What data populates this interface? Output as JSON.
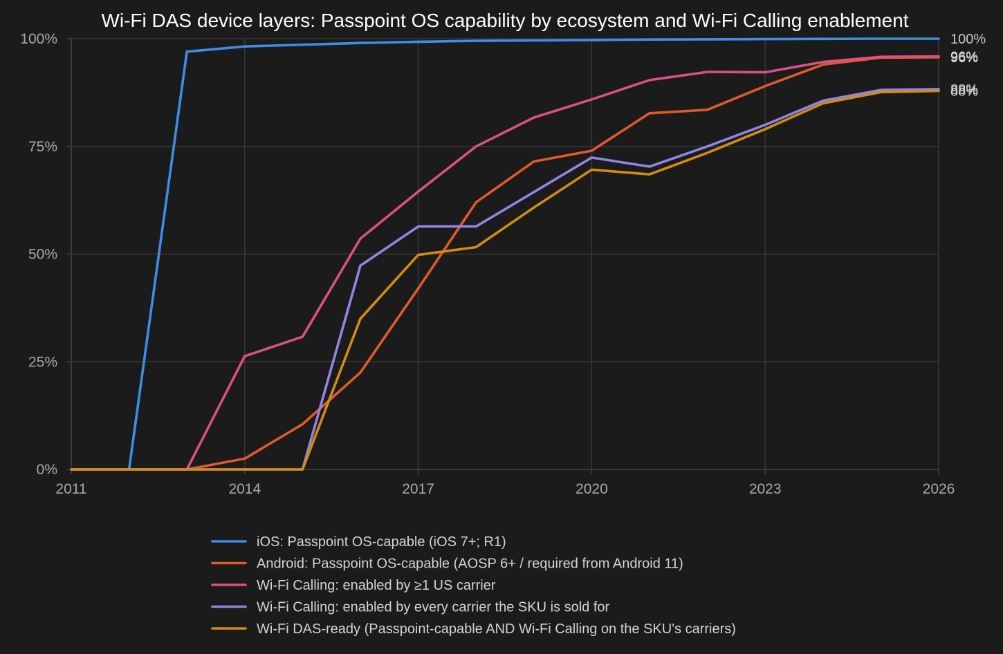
{
  "chart_data": {
    "type": "line",
    "title": "Wi-Fi DAS device layers: Passpoint OS capability by ecosystem and Wi-Fi Calling enablement",
    "xlabel": "",
    "ylabel": "",
    "xlim": [
      2011,
      2026
    ],
    "ylim": [
      0,
      100
    ],
    "x_ticks": [
      "2011",
      "2014",
      "2017",
      "2020",
      "2023",
      "2026"
    ],
    "y_ticks": [
      "0%",
      "25%",
      "50%",
      "75%",
      "100%"
    ],
    "grid": true,
    "legend_position": "bottom-center",
    "x": [
      2011,
      2012,
      2013,
      2014,
      2015,
      2016,
      2017,
      2018,
      2019,
      2020,
      2021,
      2022,
      2023,
      2024,
      2025,
      2026
    ],
    "series": [
      {
        "name": "iOS: Passpoint OS-capable (iOS 7+; R1)",
        "color": "#3d8ee6",
        "values": [
          0,
          0,
          97,
          98.2,
          98.6,
          99,
          99.3,
          99.5,
          99.6,
          99.7,
          99.8,
          99.85,
          99.9,
          99.95,
          100,
          100
        ],
        "end_label": "100%"
      },
      {
        "name": "Android: Passpoint OS-capable (AOSP 6+ / required from Android 11)",
        "color": "#e05a2b",
        "values": [
          0,
          0,
          0,
          2.5,
          10.5,
          22.5,
          42,
          62,
          71.5,
          74,
          82.7,
          83.5,
          89,
          94,
          95.6,
          95.7
        ],
        "end_label": "96%"
      },
      {
        "name": "Wi-Fi Calling: enabled by ≥1 US carrier",
        "color": "#db5084",
        "values": [
          0,
          0,
          0,
          26.3,
          30.8,
          53.6,
          64.5,
          75,
          81.7,
          85.9,
          90.4,
          92.3,
          92.2,
          94.6,
          95.8,
          95.9
        ],
        "end_label": "96%"
      },
      {
        "name": "Wi-Fi Calling: enabled by every carrier the SKU is sold for",
        "color": "#9184e6",
        "values": [
          0,
          0,
          0,
          0,
          0,
          47.3,
          56.4,
          56.4,
          64.4,
          72.4,
          70.3,
          75,
          80,
          85.6,
          88.1,
          88.3
        ],
        "end_label": "88%"
      },
      {
        "name": "Wi-Fi DAS-ready (Passpoint-capable AND Wi-Fi Calling on the SKU's carriers)",
        "color": "#d38c12",
        "values": [
          0,
          0,
          0,
          0,
          0,
          35,
          49.8,
          51.6,
          60.8,
          69.6,
          68.5,
          73.5,
          79,
          85,
          87.6,
          87.9
        ],
        "end_label": "88%"
      }
    ]
  }
}
